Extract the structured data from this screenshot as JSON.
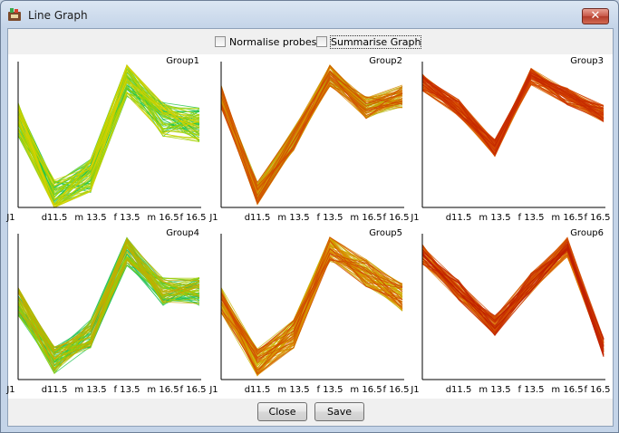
{
  "window": {
    "title": "Line Graph",
    "close_symbol": "✕",
    "icon": "app-icon"
  },
  "options": {
    "normalise_label": "Normalise probes",
    "normalise_checked": false,
    "summarise_label": "Summarise Graph",
    "summarise_checked": false
  },
  "buttons": {
    "close_label": "Close",
    "save_label": "Save"
  },
  "chart_data": [
    {
      "type": "line",
      "title": "Group1",
      "categories": [
        "J1",
        "d11.5",
        "m 13.5",
        "f 13.5",
        "m 16.5",
        "f 16.5"
      ],
      "mean": [
        0.62,
        0.08,
        0.22,
        0.9,
        0.62,
        0.58
      ],
      "spread": 0.12,
      "colors": [
        "#25c44a",
        "#a8d400",
        "#d8d000"
      ]
    },
    {
      "type": "line",
      "title": "Group2",
      "categories": [
        "J1",
        "d11.5",
        "m 13.5",
        "f 13.5",
        "m 16.5",
        "f 16.5"
      ],
      "mean": [
        0.78,
        0.1,
        0.48,
        0.93,
        0.7,
        0.78
      ],
      "spread": 0.08,
      "colors": [
        "#b6b000",
        "#d88a00",
        "#d04a00"
      ]
    },
    {
      "type": "line",
      "title": "Group3",
      "categories": [
        "J1",
        "d11.5",
        "m 13.5",
        "f 13.5",
        "m 16.5",
        "f 16.5"
      ],
      "mean": [
        0.88,
        0.7,
        0.42,
        0.92,
        0.78,
        0.66
      ],
      "spread": 0.06,
      "colors": [
        "#dc7000",
        "#d44400",
        "#c42800"
      ]
    },
    {
      "type": "line",
      "title": "Group4",
      "categories": [
        "J1",
        "d11.5",
        "m 13.5",
        "f 13.5",
        "m 16.5",
        "f 16.5"
      ],
      "mean": [
        0.55,
        0.14,
        0.32,
        0.9,
        0.62,
        0.62
      ],
      "spread": 0.1,
      "colors": [
        "#26c256",
        "#a2cc00",
        "#c7a800"
      ]
    },
    {
      "type": "line",
      "title": "Group5",
      "categories": [
        "J1",
        "d11.5",
        "m 13.5",
        "f 13.5",
        "m 16.5",
        "f 16.5"
      ],
      "mean": [
        0.55,
        0.12,
        0.32,
        0.93,
        0.75,
        0.58
      ],
      "spread": 0.1,
      "colors": [
        "#c9b400",
        "#d98800",
        "#d04800"
      ]
    },
    {
      "type": "line",
      "title": "Group6",
      "categories": [
        "J1",
        "d11.5",
        "m 13.5",
        "f 13.5",
        "m 16.5",
        "f 16.5"
      ],
      "mean": [
        0.88,
        0.63,
        0.38,
        0.68,
        0.93,
        0.22
      ],
      "spread": 0.07,
      "colors": [
        "#dc7400",
        "#d04600",
        "#c02000"
      ]
    }
  ]
}
